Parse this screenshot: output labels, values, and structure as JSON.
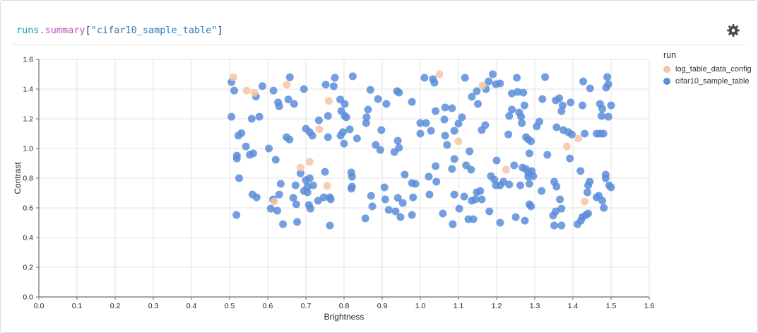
{
  "panel": {
    "title_tokens": [
      {
        "text": "runs",
        "color": "#16a0ad"
      },
      {
        "text": ".",
        "color": "#cc5a54"
      },
      {
        "text": "summary",
        "color": "#bb53bb"
      },
      {
        "text": "[",
        "color": "#333333"
      },
      {
        "text": "\"cifar10_sample_table\"",
        "color": "#2e7bb8"
      },
      {
        "text": "]",
        "color": "#333333"
      }
    ],
    "gear_icon": "gear-icon",
    "gear_color": "#4a4a4a"
  },
  "legend": {
    "title": "run",
    "entries": [
      {
        "label": "log_table_data_config",
        "color": "#f6c5a4"
      },
      {
        "label": "cifar10_sample_table",
        "color": "#5b8dd9"
      }
    ]
  },
  "chart_data": {
    "type": "scatter",
    "title": "runs.summary[\"cifar10_sample_table\"]",
    "xlabel": "Brightness",
    "ylabel": "Contrast",
    "xlim": [
      0,
      1.6
    ],
    "ylim": [
      0,
      1.6
    ],
    "grid": true,
    "legend_position": "right",
    "legend_title": "run",
    "xticks": [
      "0.0",
      "0.1",
      "0.2",
      "0.3",
      "0.4",
      "0.5",
      "0.6",
      "0.7",
      "0.8",
      "0.9",
      "1.0",
      "1.1",
      "1.2",
      "1.3",
      "1.4",
      "1.5",
      "1.6"
    ],
    "yticks": [
      "0.0",
      "0.2",
      "0.4",
      "0.6",
      "0.8",
      "1.0",
      "1.2",
      "1.4",
      "1.6"
    ],
    "point_radius": 5.5,
    "grid_color": "#e3e3e3",
    "axis_color": "#6e6e6e",
    "tick_label_color": "#222222",
    "series": [
      {
        "name": "log_table_data_config",
        "color": "#f6c5a4",
        "points": [
          [
            0.51,
            1.48
          ],
          [
            0.545,
            1.39
          ],
          [
            0.565,
            1.375
          ],
          [
            0.65,
            1.43
          ],
          [
            0.76,
            1.32
          ],
          [
            0.735,
            1.13
          ],
          [
            0.71,
            0.91
          ],
          [
            0.686,
            0.871
          ],
          [
            1.05,
            1.5
          ],
          [
            1.163,
            1.424
          ],
          [
            1.1,
            1.048
          ],
          [
            1.414,
            1.067
          ],
          [
            1.384,
            1.014
          ],
          [
            1.225,
            0.857
          ],
          [
            0.756,
            0.748
          ],
          [
            0.617,
            0.643
          ],
          [
            1.431,
            0.643
          ]
        ]
      },
      {
        "name": "cifar10_sample_table",
        "color": "#5b8dd9",
        "points": [
          [
            0.505,
            1.447
          ],
          [
            0.512,
            1.39
          ],
          [
            0.569,
            1.35
          ],
          [
            0.586,
            1.42
          ],
          [
            0.615,
            1.39
          ],
          [
            0.658,
            1.48
          ],
          [
            0.654,
            1.33
          ],
          [
            0.669,
            1.3
          ],
          [
            0.695,
            1.4
          ],
          [
            0.63,
            1.285
          ],
          [
            0.627,
            1.31
          ],
          [
            0.752,
            1.43
          ],
          [
            0.776,
            1.476
          ],
          [
            0.773,
            1.419
          ],
          [
            0.823,
            1.486
          ],
          [
            0.79,
            1.33
          ],
          [
            0.802,
            1.3
          ],
          [
            0.793,
            1.252
          ],
          [
            0.802,
            1.219
          ],
          [
            0.758,
            1.219
          ],
          [
            0.505,
            1.214
          ],
          [
            0.558,
            1.2
          ],
          [
            0.578,
            1.214
          ],
          [
            0.869,
            1.395
          ],
          [
            0.889,
            1.333
          ],
          [
            0.911,
            1.3
          ],
          [
            0.939,
            1.386
          ],
          [
            0.944,
            1.376
          ],
          [
            0.978,
            1.314
          ],
          [
            1.011,
            1.476
          ],
          [
            1.033,
            1.467
          ],
          [
            0.863,
            1.262
          ],
          [
            0.859,
            1.21
          ],
          [
            0.734,
            1.19
          ],
          [
            0.7,
            1.133
          ],
          [
            0.71,
            1.11
          ],
          [
            0.717,
            1.086
          ],
          [
            0.758,
            1.076
          ],
          [
            0.791,
            1.086
          ],
          [
            0.8,
            1.033
          ],
          [
            0.806,
            1.21
          ],
          [
            0.815,
            1.129
          ],
          [
            0.834,
            1.067
          ],
          [
            0.523,
            1.086
          ],
          [
            0.531,
            1.103
          ],
          [
            0.543,
            1.014
          ],
          [
            0.553,
            0.957
          ],
          [
            0.519,
            0.952
          ],
          [
            0.562,
            0.967
          ],
          [
            0.603,
            1.0
          ],
          [
            0.649,
            1.076
          ],
          [
            0.657,
            1.06
          ],
          [
            0.858,
            1.171
          ],
          [
            0.883,
            1.024
          ],
          [
            0.895,
            0.99
          ],
          [
            0.941,
            1.052
          ],
          [
            0.944,
            1.005
          ],
          [
            1.0,
            1.171
          ],
          [
            1.015,
            1.171
          ],
          [
            1.04,
            1.252
          ],
          [
            0.75,
            0.843
          ],
          [
            0.819,
            0.838
          ],
          [
            0.686,
            0.833
          ],
          [
            0.519,
            0.933
          ],
          [
            0.621,
            0.924
          ],
          [
            0.898,
            1.124
          ],
          [
            1.0,
            1.1
          ],
          [
            0.797,
            1.11
          ],
          [
            1.037,
            1.443
          ],
          [
            1.117,
            1.476
          ],
          [
            1.19,
            1.5
          ],
          [
            1.179,
            1.452
          ],
          [
            1.198,
            1.433
          ],
          [
            1.209,
            1.438
          ],
          [
            1.172,
            1.4
          ],
          [
            1.148,
            1.386
          ],
          [
            1.135,
            1.348
          ],
          [
            1.151,
            1.3
          ],
          [
            1.253,
            1.476
          ],
          [
            1.327,
            1.481
          ],
          [
            1.427,
            1.452
          ],
          [
            1.445,
            1.405
          ],
          [
            1.49,
            1.481
          ],
          [
            1.493,
            1.433
          ],
          [
            1.487,
            1.41
          ],
          [
            1.24,
            1.371
          ],
          [
            1.255,
            1.381
          ],
          [
            1.27,
            1.376
          ],
          [
            1.273,
            1.29
          ],
          [
            1.24,
            1.262
          ],
          [
            1.233,
            1.219
          ],
          [
            1.259,
            1.243
          ],
          [
            1.264,
            1.214
          ],
          [
            1.266,
            1.171
          ],
          [
            1.32,
            1.333
          ],
          [
            1.364,
            1.338
          ],
          [
            1.355,
            1.324
          ],
          [
            1.373,
            1.29
          ],
          [
            1.394,
            1.31
          ],
          [
            1.37,
            1.252
          ],
          [
            1.425,
            1.29
          ],
          [
            1.471,
            1.3
          ],
          [
            1.477,
            1.267
          ],
          [
            1.5,
            1.29
          ],
          [
            1.493,
            1.214
          ],
          [
            1.475,
            1.219
          ],
          [
            1.065,
            1.276
          ],
          [
            1.083,
            1.271
          ],
          [
            1.063,
            1.195
          ],
          [
            1.109,
            1.21
          ],
          [
            1.1,
            1.167
          ],
          [
            1.089,
            1.119
          ],
          [
            1.065,
            1.086
          ],
          [
            1.07,
            1.024
          ],
          [
            1.161,
            1.124
          ],
          [
            1.17,
            1.157
          ],
          [
            1.312,
            1.181
          ],
          [
            1.305,
            1.148
          ],
          [
            1.357,
            1.143
          ],
          [
            1.375,
            1.124
          ],
          [
            1.388,
            1.11
          ],
          [
            1.397,
            1.095
          ],
          [
            1.431,
            1.1
          ],
          [
            1.462,
            1.1
          ],
          [
            1.471,
            1.1
          ],
          [
            1.48,
            1.1
          ],
          [
            1.277,
            1.076
          ],
          [
            1.283,
            1.062
          ],
          [
            1.29,
            1.048
          ],
          [
            1.231,
            1.095
          ],
          [
            1.286,
            0.967
          ],
          [
            1.333,
            0.957
          ],
          [
            1.392,
            0.933
          ],
          [
            1.129,
            0.981
          ],
          [
            1.089,
            0.929
          ],
          [
            1.083,
            0.862
          ],
          [
            1.12,
            0.886
          ],
          [
            1.133,
            0.857
          ],
          [
            1.2,
            0.919
          ],
          [
            1.246,
            0.886
          ],
          [
            1.268,
            0.871
          ],
          [
            1.277,
            0.862
          ],
          [
            1.283,
            0.838
          ],
          [
            1.292,
            0.848
          ],
          [
            1.42,
            0.848
          ],
          [
            1.486,
            0.824
          ],
          [
            1.185,
            0.814
          ],
          [
            1.028,
            1.119
          ],
          [
            1.04,
            0.881
          ],
          [
            1.296,
            0.814
          ],
          [
            0.525,
            0.8
          ],
          [
            0.634,
            0.762
          ],
          [
            0.673,
            0.752
          ],
          [
            0.7,
            0.786
          ],
          [
            0.71,
            0.8
          ],
          [
            0.704,
            0.743
          ],
          [
            0.719,
            0.752
          ],
          [
            0.695,
            0.714
          ],
          [
            0.704,
            0.705
          ],
          [
            0.56,
            0.69
          ],
          [
            0.571,
            0.671
          ],
          [
            0.63,
            0.69
          ],
          [
            0.614,
            0.657
          ],
          [
            0.667,
            0.667
          ],
          [
            0.675,
            0.624
          ],
          [
            0.608,
            0.595
          ],
          [
            0.625,
            0.581
          ],
          [
            0.708,
            0.619
          ],
          [
            0.712,
            0.595
          ],
          [
            0.732,
            0.648
          ],
          [
            0.747,
            0.671
          ],
          [
            0.763,
            0.671
          ],
          [
            0.765,
            0.657
          ],
          [
            0.518,
            0.552
          ],
          [
            0.64,
            0.49
          ],
          [
            0.677,
            0.505
          ],
          [
            0.763,
            0.481
          ],
          [
            0.819,
            0.729
          ],
          [
            0.821,
            0.81
          ],
          [
            0.856,
            0.529
          ],
          [
            0.871,
            0.681
          ],
          [
            0.874,
            0.61
          ],
          [
            0.906,
            0.738
          ],
          [
            0.908,
            0.657
          ],
          [
            0.941,
            0.667
          ],
          [
            0.954,
            0.633
          ],
          [
            0.917,
            0.586
          ],
          [
            0.935,
            0.576
          ],
          [
            0.948,
            0.538
          ],
          [
            0.978,
            0.767
          ],
          [
            0.987,
            0.762
          ],
          [
            0.981,
            0.671
          ],
          [
            0.978,
            0.552
          ],
          [
            1.024,
            0.69
          ],
          [
            1.042,
            0.776
          ],
          [
            0.821,
            0.743
          ],
          [
            0.959,
            0.824
          ],
          [
            1.022,
            0.81
          ],
          [
            0.932,
            0.976
          ],
          [
            1.089,
            0.69
          ],
          [
            1.115,
            0.676
          ],
          [
            1.135,
            0.648
          ],
          [
            1.144,
            0.657
          ],
          [
            1.148,
            0.705
          ],
          [
            1.157,
            0.714
          ],
          [
            1.161,
            0.657
          ],
          [
            1.102,
            0.595
          ],
          [
            1.059,
            0.562
          ],
          [
            1.085,
            0.49
          ],
          [
            1.126,
            0.524
          ],
          [
            1.139,
            0.524
          ],
          [
            1.181,
            0.576
          ],
          [
            1.194,
            0.79
          ],
          [
            1.198,
            0.752
          ],
          [
            1.209,
            0.752
          ],
          [
            1.218,
            0.776
          ],
          [
            1.233,
            0.757
          ],
          [
            1.209,
            0.5
          ],
          [
            1.25,
            0.538
          ],
          [
            1.262,
            0.752
          ],
          [
            1.274,
            0.514
          ],
          [
            1.283,
            0.81
          ],
          [
            1.286,
            0.762
          ],
          [
            1.286,
            0.624
          ],
          [
            1.29,
            0.61
          ],
          [
            1.318,
            0.714
          ],
          [
            1.351,
            0.776
          ],
          [
            1.357,
            0.743
          ],
          [
            1.366,
            0.657
          ],
          [
            1.37,
            0.595
          ],
          [
            1.348,
            0.548
          ],
          [
            1.355,
            0.576
          ],
          [
            1.351,
            0.481
          ],
          [
            1.37,
            0.481
          ],
          [
            1.412,
            0.49
          ],
          [
            1.421,
            0.514
          ],
          [
            1.425,
            0.538
          ],
          [
            1.434,
            0.552
          ],
          [
            1.44,
            0.562
          ],
          [
            1.444,
            0.776
          ],
          [
            1.44,
            0.752
          ],
          [
            1.438,
            0.705
          ],
          [
            1.462,
            0.671
          ],
          [
            1.468,
            0.681
          ],
          [
            1.477,
            0.648
          ],
          [
            1.481,
            0.6
          ],
          [
            1.486,
            0.8
          ],
          [
            1.495,
            0.752
          ],
          [
            1.5,
            0.738
          ]
        ]
      }
    ]
  }
}
